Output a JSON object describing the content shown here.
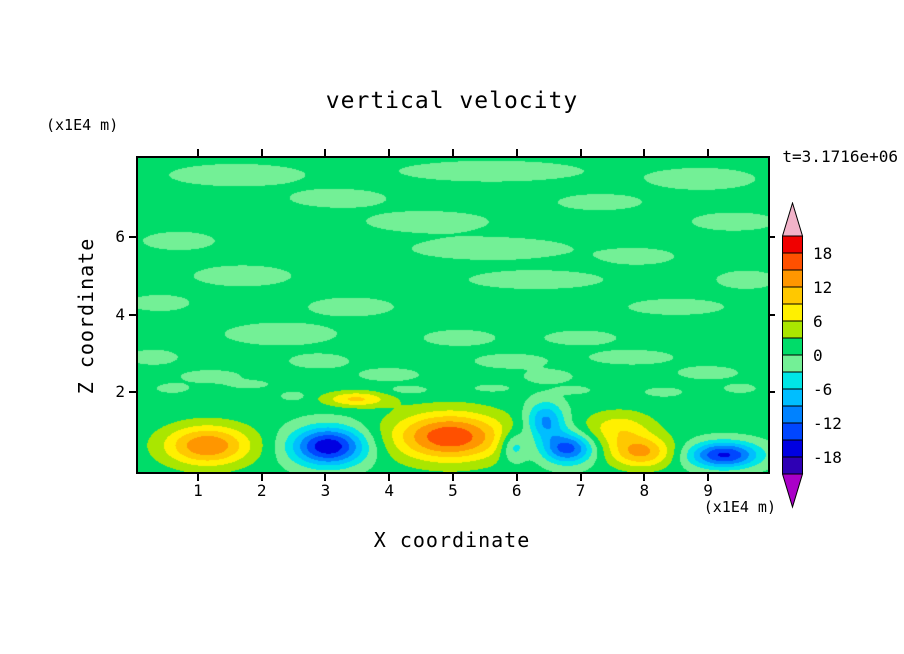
{
  "chart_data": {
    "type": "contour-heatmap",
    "title": "vertical velocity",
    "time_label": "t=3.1716e+06",
    "xlabel": "X coordinate",
    "zlabel": "Z coordinate",
    "x_unit": "(x1E4 m)",
    "z_unit": "(x1E4 m)",
    "x_range": [
      0.06,
      9.94
    ],
    "z_range": [
      -0.06,
      8.04
    ],
    "x_ticks": [
      1,
      2,
      3,
      4,
      5,
      6,
      7,
      8,
      9
    ],
    "z_ticks": [
      2,
      4,
      6
    ],
    "contour_interval": 3,
    "grid": false,
    "colorbar": {
      "orientation": "vertical-right",
      "labeled_levels": [
        18,
        12,
        6,
        0,
        -6,
        -12,
        -18
      ],
      "level_min": -21,
      "level_max": 21,
      "palette_low_to_high": [
        "#2E00B4",
        "#0000E1",
        "#0046FF",
        "#0082FF",
        "#00BEFF",
        "#00E6E6",
        "#73F096",
        "#00DC69",
        "#AAE600",
        "#FFF000",
        "#FFC800",
        "#FF9600",
        "#FF5000",
        "#F00000"
      ],
      "arrow_high_color": "#F2B3C9",
      "arrow_low_color": "#AA00C8"
    },
    "field": {
      "base_value": 1.0,
      "cells": [
        {
          "x": 1.15,
          "z": 0.62,
          "a": 13.8,
          "rx": 0.68,
          "rz": 0.52
        },
        {
          "x": 3.48,
          "z": 1.82,
          "a": 8.5,
          "rx": 0.5,
          "rz": 0.2
        },
        {
          "x": 4.95,
          "z": 0.85,
          "a": 16.5,
          "rx": 0.88,
          "rz": 0.62
        },
        {
          "x": 7.6,
          "z": 1.05,
          "a": 7.0,
          "rx": 0.55,
          "rz": 0.45
        },
        {
          "x": 7.95,
          "z": 0.45,
          "a": 11.5,
          "rx": 0.5,
          "rz": 0.4
        },
        {
          "x": 3.05,
          "z": 0.6,
          "a": -18.5,
          "rx": 0.58,
          "rz": 0.5
        },
        {
          "x": 6.45,
          "z": 1.25,
          "a": -11.0,
          "rx": 0.3,
          "rz": 0.5
        },
        {
          "x": 6.8,
          "z": 0.55,
          "a": -14.5,
          "rx": 0.4,
          "rz": 0.4
        },
        {
          "x": 5.95,
          "z": 0.6,
          "a": -7.5,
          "rx": 0.22,
          "rz": 0.4
        },
        {
          "x": 9.25,
          "z": 0.38,
          "a": -16.5,
          "rx": 0.55,
          "rz": 0.34
        }
      ],
      "background_patches": [
        {
          "x": 1.6,
          "z": 7.6,
          "a": -2.5,
          "rx": 1.1,
          "rz": 0.3
        },
        {
          "x": 5.6,
          "z": 7.7,
          "a": -2.5,
          "rx": 1.5,
          "rz": 0.28
        },
        {
          "x": 8.9,
          "z": 7.5,
          "a": -2.4,
          "rx": 0.9,
          "rz": 0.3
        },
        {
          "x": 3.2,
          "z": 7.0,
          "a": -2.4,
          "rx": 0.8,
          "rz": 0.25
        },
        {
          "x": 7.3,
          "z": 6.9,
          "a": -2.4,
          "rx": 0.7,
          "rz": 0.22
        },
        {
          "x": 4.6,
          "z": 6.4,
          "a": -2.5,
          "rx": 1.0,
          "rz": 0.28
        },
        {
          "x": 9.4,
          "z": 6.4,
          "a": -2.4,
          "rx": 0.7,
          "rz": 0.25
        },
        {
          "x": 0.7,
          "z": 5.9,
          "a": -2.4,
          "rx": 0.6,
          "rz": 0.25
        },
        {
          "x": 5.6,
          "z": 5.7,
          "a": -2.5,
          "rx": 1.3,
          "rz": 0.3
        },
        {
          "x": 7.9,
          "z": 5.5,
          "a": -2.4,
          "rx": 0.6,
          "rz": 0.22
        },
        {
          "x": 1.7,
          "z": 5.0,
          "a": -2.5,
          "rx": 0.8,
          "rz": 0.28
        },
        {
          "x": 6.3,
          "z": 4.9,
          "a": -2.5,
          "rx": 1.1,
          "rz": 0.25
        },
        {
          "x": 9.6,
          "z": 4.9,
          "a": -2.4,
          "rx": 0.5,
          "rz": 0.25
        },
        {
          "x": 0.4,
          "z": 4.3,
          "a": -2.4,
          "rx": 0.5,
          "rz": 0.22
        },
        {
          "x": 3.4,
          "z": 4.2,
          "a": -2.5,
          "rx": 0.7,
          "rz": 0.25
        },
        {
          "x": 8.5,
          "z": 4.2,
          "a": -2.4,
          "rx": 0.8,
          "rz": 0.22
        },
        {
          "x": 2.3,
          "z": 3.5,
          "a": -2.6,
          "rx": 0.9,
          "rz": 0.3
        },
        {
          "x": 5.1,
          "z": 3.4,
          "a": -2.4,
          "rx": 0.6,
          "rz": 0.22
        },
        {
          "x": 7.0,
          "z": 3.4,
          "a": -2.4,
          "rx": 0.6,
          "rz": 0.2
        },
        {
          "x": 0.3,
          "z": 2.9,
          "a": -2.5,
          "rx": 0.4,
          "rz": 0.2
        },
        {
          "x": 2.9,
          "z": 2.8,
          "a": -2.4,
          "rx": 0.5,
          "rz": 0.2
        },
        {
          "x": 5.9,
          "z": 2.8,
          "a": -2.4,
          "rx": 0.6,
          "rz": 0.2
        },
        {
          "x": 7.8,
          "z": 2.9,
          "a": -2.4,
          "rx": 0.7,
          "rz": 0.2
        },
        {
          "x": 1.2,
          "z": 2.4,
          "a": -2.4,
          "rx": 0.5,
          "rz": 0.18
        },
        {
          "x": 4.0,
          "z": 2.45,
          "a": -2.4,
          "rx": 0.5,
          "rz": 0.18
        },
        {
          "x": 6.5,
          "z": 2.4,
          "a": -2.4,
          "rx": 0.4,
          "rz": 0.18
        },
        {
          "x": 9.0,
          "z": 2.5,
          "a": -2.4,
          "rx": 0.5,
          "rz": 0.18
        },
        {
          "x": 0.6,
          "z": 2.1,
          "a": -2.6,
          "rx": 0.25,
          "rz": 0.12
        },
        {
          "x": 1.8,
          "z": 2.2,
          "a": -2.6,
          "rx": 0.3,
          "rz": 0.1
        },
        {
          "x": 2.5,
          "z": 1.9,
          "a": -2.7,
          "rx": 0.2,
          "rz": 0.12
        },
        {
          "x": 4.3,
          "z": 2.05,
          "a": -2.6,
          "rx": 0.35,
          "rz": 0.12
        },
        {
          "x": 5.6,
          "z": 2.1,
          "a": -2.6,
          "rx": 0.3,
          "rz": 0.1
        },
        {
          "x": 6.9,
          "z": 2.05,
          "a": -2.7,
          "rx": 0.25,
          "rz": 0.1
        },
        {
          "x": 8.3,
          "z": 2.0,
          "a": -2.6,
          "rx": 0.3,
          "rz": 0.12
        },
        {
          "x": 9.5,
          "z": 2.1,
          "a": -2.6,
          "rx": 0.25,
          "rz": 0.12
        }
      ]
    }
  }
}
